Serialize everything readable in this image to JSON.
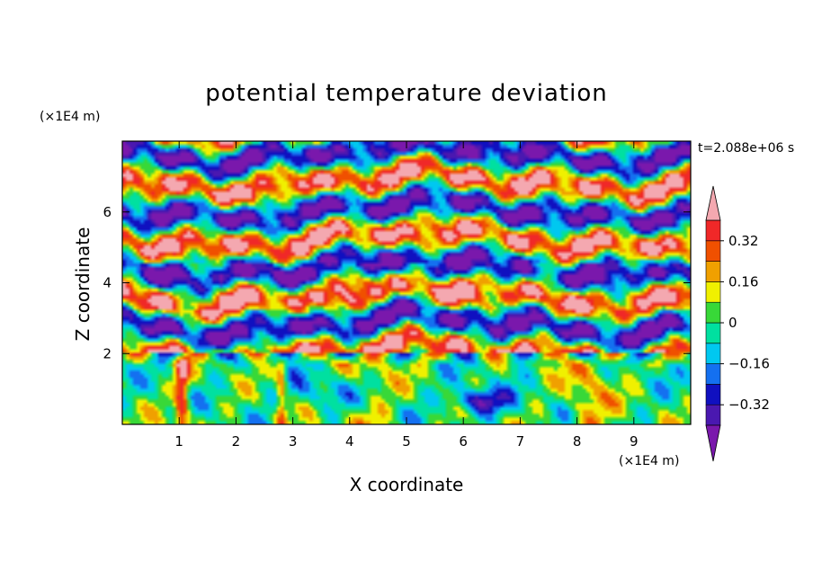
{
  "chart_data": {
    "type": "heatmap",
    "title": "potential temperature deviation",
    "xlabel": "X coordinate",
    "ylabel": "Z coordinate",
    "x_unit": "(×1E4 m)",
    "y_unit": "(×1E4 m)",
    "time_label": "t=2.088e+06 s",
    "xlim": [
      0,
      10
    ],
    "ylim": [
      0,
      8
    ],
    "x_ticks": [
      "1",
      "2",
      "3",
      "4",
      "5",
      "6",
      "7",
      "8",
      "9"
    ],
    "x_tick_values": [
      1,
      2,
      3,
      4,
      5,
      6,
      7,
      8,
      9
    ],
    "y_ticks": [
      "2",
      "4",
      "6"
    ],
    "y_tick_values": [
      2,
      4,
      6
    ],
    "colorbar": {
      "levels": [
        -0.4,
        -0.32,
        -0.24,
        -0.16,
        -0.08,
        0,
        0.08,
        0.16,
        0.24,
        0.32,
        0.4
      ],
      "labels": [
        "0.32",
        "0.16",
        "0",
        "−0.16",
        "−0.32"
      ],
      "label_values": [
        0.32,
        0.16,
        0,
        -0.16,
        -0.32
      ],
      "extend": "both",
      "colors": [
        "#7a18ac",
        "#4a18b0",
        "#1010c0",
        "#1470f0",
        "#00c8f0",
        "#00e0a0",
        "#38d838",
        "#f0f000",
        "#f0a000",
        "#f05000",
        "#f02828",
        "#f4a8b0"
      ]
    }
  }
}
